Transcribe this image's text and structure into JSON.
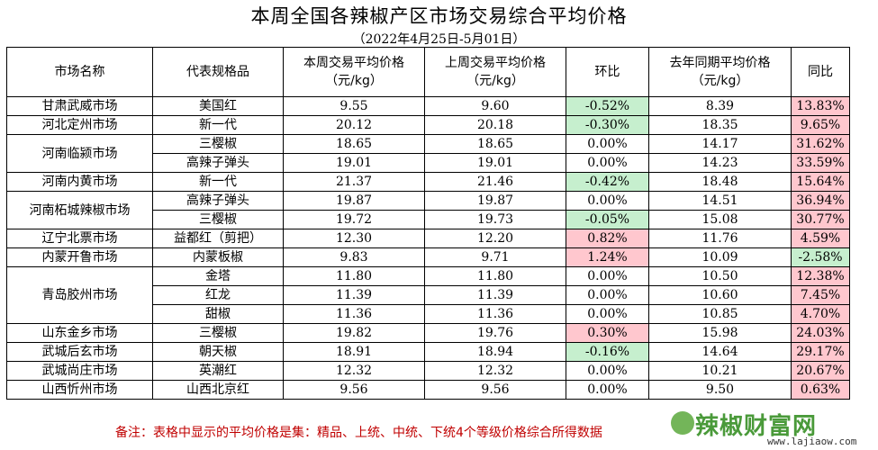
{
  "title": "本周全国各辣椒产区市场交易综合平均价格",
  "subtitle": "（2022年4月25日-5月01日）",
  "headers": {
    "market": "市场名称",
    "spec": "代表规格品",
    "this_week_1": "本周交易平均价格",
    "this_week_2": "（元/kg）",
    "last_week_1": "上周交易平均价格",
    "last_week_2": "（元/kg）",
    "wow": "环比",
    "last_year_1": "去年同期平均价格",
    "last_year_2": "（元/kg）",
    "yoy": "同比"
  },
  "markets": [
    {
      "name": "甘肃武威市场",
      "rows": [
        {
          "spec": "美国红",
          "this_week": "9.55",
          "last_week": "9.60",
          "wow": "-0.52%",
          "last_year": "8.39",
          "yoy": "13.83%"
        }
      ]
    },
    {
      "name": "河北定州市场",
      "rows": [
        {
          "spec": "新一代",
          "this_week": "20.12",
          "last_week": "20.18",
          "wow": "-0.30%",
          "last_year": "18.35",
          "yoy": "9.65%"
        }
      ]
    },
    {
      "name": "河南临颍市场",
      "rows": [
        {
          "spec": "三樱椒",
          "this_week": "18.65",
          "last_week": "18.65",
          "wow": "0.00%",
          "last_year": "14.17",
          "yoy": "31.62%"
        },
        {
          "spec": "高辣子弹头",
          "this_week": "19.01",
          "last_week": "19.01",
          "wow": "0.00%",
          "last_year": "14.23",
          "yoy": "33.59%"
        }
      ]
    },
    {
      "name": "河南内黄市场",
      "rows": [
        {
          "spec": "新一代",
          "this_week": "21.37",
          "last_week": "21.46",
          "wow": "-0.42%",
          "last_year": "18.48",
          "yoy": "15.64%"
        }
      ]
    },
    {
      "name": "河南柘城辣椒市场",
      "rows": [
        {
          "spec": "高辣子弹头",
          "this_week": "19.87",
          "last_week": "19.87",
          "wow": "0.00%",
          "last_year": "14.51",
          "yoy": "36.94%"
        },
        {
          "spec": "三樱椒",
          "this_week": "19.72",
          "last_week": "19.73",
          "wow": "-0.05%",
          "last_year": "15.08",
          "yoy": "30.77%"
        }
      ]
    },
    {
      "name": "辽宁北票市场",
      "rows": [
        {
          "spec": "益都红（剪把）",
          "this_week": "12.30",
          "last_week": "12.20",
          "wow": "0.82%",
          "last_year": "11.76",
          "yoy": "4.59%"
        }
      ]
    },
    {
      "name": "内蒙开鲁市场",
      "rows": [
        {
          "spec": "内蒙板椒",
          "this_week": "9.83",
          "last_week": "9.71",
          "wow": "1.24%",
          "last_year": "10.09",
          "yoy": "-2.58%"
        }
      ]
    },
    {
      "name": "青岛胶州市场",
      "rows": [
        {
          "spec": "金塔",
          "this_week": "11.80",
          "last_week": "11.80",
          "wow": "0.00%",
          "last_year": "10.50",
          "yoy": "12.38%"
        },
        {
          "spec": "红龙",
          "this_week": "11.39",
          "last_week": "11.39",
          "wow": "0.00%",
          "last_year": "10.60",
          "yoy": "7.45%"
        },
        {
          "spec": "甜椒",
          "this_week": "11.36",
          "last_week": "11.36",
          "wow": "0.00%",
          "last_year": "10.85",
          "yoy": "4.70%"
        }
      ]
    },
    {
      "name": "山东金乡市场",
      "rows": [
        {
          "spec": "三樱椒",
          "this_week": "19.82",
          "last_week": "19.76",
          "wow": "0.30%",
          "last_year": "15.98",
          "yoy": "24.03%"
        }
      ]
    },
    {
      "name": "武城后玄市场",
      "rows": [
        {
          "spec": "朝天椒",
          "this_week": "18.91",
          "last_week": "18.94",
          "wow": "-0.16%",
          "last_year": "14.64",
          "yoy": "29.17%"
        }
      ]
    },
    {
      "name": "武城尚庄市场",
      "rows": [
        {
          "spec": "英潮红",
          "this_week": "12.32",
          "last_week": "12.32",
          "wow": "0.00%",
          "last_year": "10.21",
          "yoy": "20.67%"
        }
      ]
    },
    {
      "name": "山西忻州市场",
      "rows": [
        {
          "spec": "山西北京红",
          "this_week": "9.56",
          "last_week": "9.56",
          "wow": "0.00%",
          "last_year": "9.50",
          "yoy": "0.63%"
        }
      ]
    }
  ],
  "note": "备注：表格中显示的平均价格是集：精品、上统、中统、下统4个等级价格综合所得数据",
  "watermark": {
    "text": "辣椒财富网",
    "url": "www.lajiaow.com"
  },
  "colors": {
    "positive_bg": "#ffc7ce",
    "negative_bg": "#c6efce",
    "note": "#c00000"
  }
}
